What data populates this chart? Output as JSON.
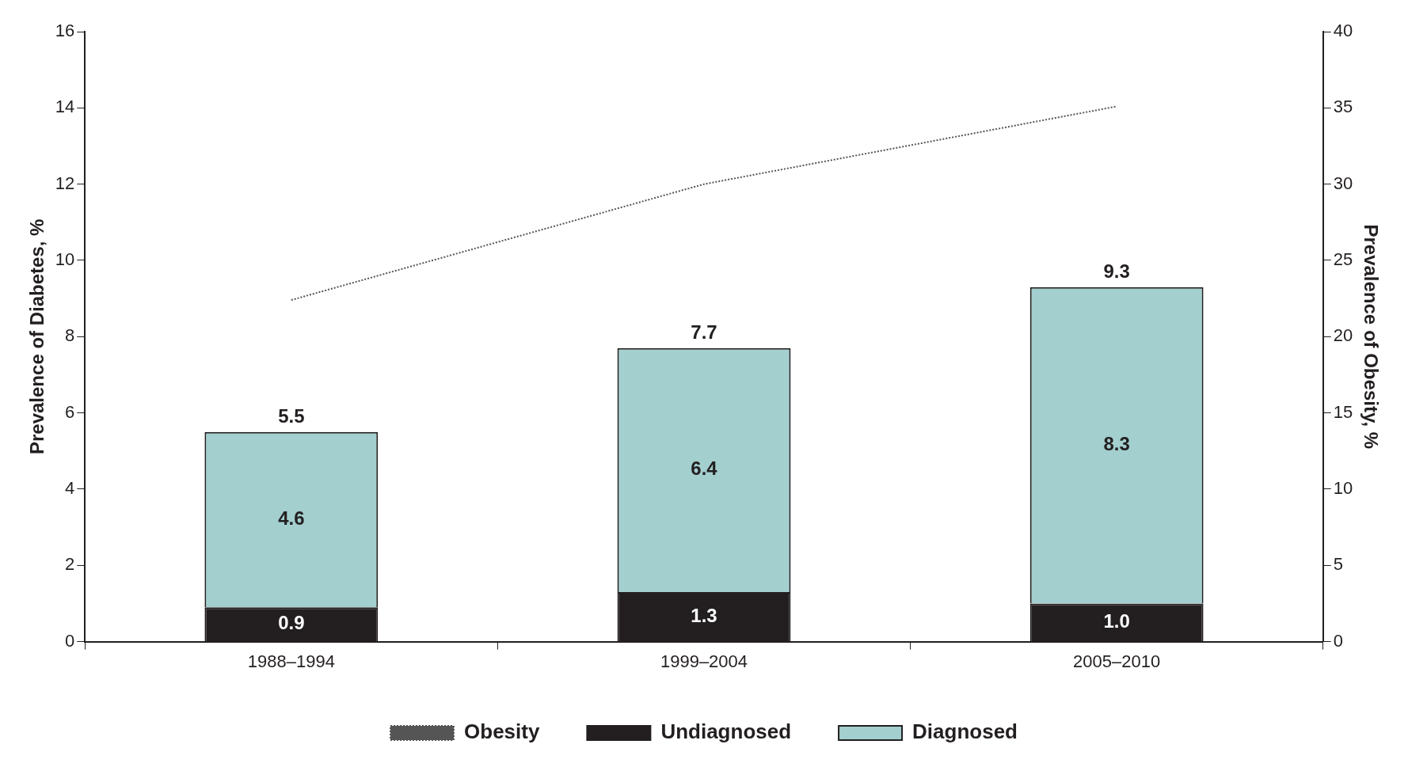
{
  "chart_data": {
    "type": "bar",
    "stacked": true,
    "categories": [
      "1988–1994",
      "1999–2004",
      "2005–2010"
    ],
    "ylabel": "Prevalence of Diabetes, %",
    "y2label": "Prevalence of Obesity, %",
    "ylim": [
      0,
      16
    ],
    "yticks": [
      0,
      2,
      4,
      6,
      8,
      10,
      12,
      14,
      16
    ],
    "y2lim": [
      0,
      40
    ],
    "y2ticks": [
      0,
      5,
      10,
      15,
      20,
      25,
      30,
      35,
      40
    ],
    "series": [
      {
        "name": "Undiagnosed",
        "color": "#231f20",
        "values": [
          0.9,
          1.3,
          1.0
        ],
        "value_labels": [
          "0.9",
          "1.3",
          "1.0"
        ]
      },
      {
        "name": "Diagnosed",
        "color": "#a3cfcf",
        "values": [
          4.6,
          6.4,
          8.3
        ],
        "value_labels": [
          "4.6",
          "6.4",
          "8.3"
        ]
      },
      {
        "name": "Obesity",
        "type": "line",
        "axis": "y2",
        "color": "#555555",
        "line_style": "dotted",
        "marker": "none",
        "values": [
          22.4,
          30.0,
          35.1
        ]
      }
    ],
    "totals": [
      "5.5",
      "7.7",
      "9.3"
    ],
    "legend": "bottom",
    "grid": false
  }
}
